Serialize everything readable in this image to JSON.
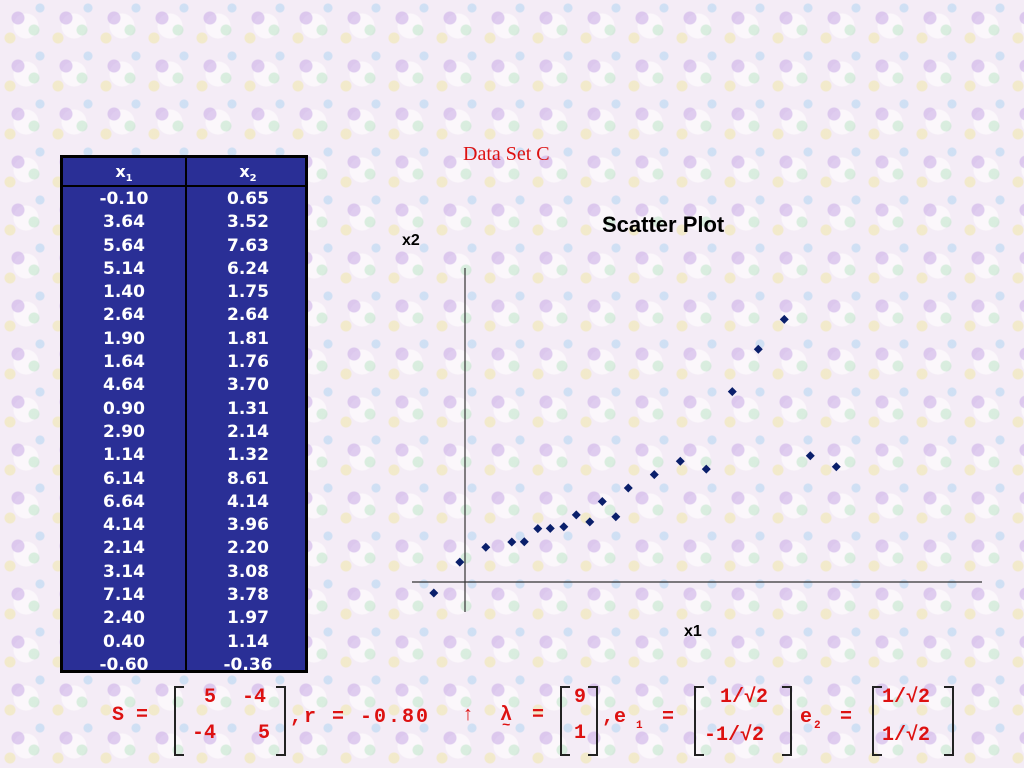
{
  "title": "Data Set C",
  "table": {
    "header_x1": "x",
    "header_x1_sub": "1",
    "header_x2": "x",
    "header_x2_sub": "2",
    "x1": [
      "-0.10",
      "3.64",
      "5.64",
      "5.14",
      "1.40",
      "2.64",
      "1.90",
      "1.64",
      "4.64",
      "0.90",
      "2.90",
      "1.14",
      "6.14",
      "6.64",
      "4.14",
      "2.14",
      "3.14",
      "7.14",
      "2.40",
      "0.40",
      "-0.60"
    ],
    "x2": [
      "0.65",
      "3.52",
      "7.63",
      "6.24",
      "1.75",
      "2.64",
      "1.81",
      "1.76",
      "3.70",
      "1.31",
      "2.14",
      "1.32",
      "8.61",
      "4.14",
      "3.96",
      "2.20",
      "3.08",
      "3.78",
      "1.97",
      "1.14",
      "-0.36"
    ]
  },
  "chart_data": {
    "type": "scatter",
    "title": "Scatter Plot",
    "xlabel": "x1",
    "ylabel": "x2",
    "grid": false,
    "x": [
      -0.1,
      3.64,
      5.64,
      5.14,
      1.4,
      2.64,
      1.9,
      1.64,
      4.64,
      0.9,
      2.9,
      1.14,
      6.14,
      6.64,
      4.14,
      2.14,
      3.14,
      7.14,
      2.4,
      0.4,
      -0.6
    ],
    "y": [
      0.65,
      3.52,
      7.63,
      6.24,
      1.75,
      2.64,
      1.81,
      1.76,
      3.7,
      1.31,
      2.14,
      1.32,
      8.61,
      4.14,
      3.96,
      2.2,
      3.08,
      3.78,
      1.97,
      1.14,
      -0.36
    ],
    "marker_color": "#0a1f6b"
  },
  "formula": {
    "S_label": "S =",
    "S_matrix": [
      "5",
      "-4",
      "-4",
      "5"
    ],
    "r_text": ",r = -0.80",
    "arrow": "↑",
    "lambda_label": "λ",
    "lambda_tilde": "~",
    "lambda_eq": "=",
    "lambda_matrix": [
      "9",
      "1"
    ],
    "e1_label": ",e",
    "e1_sub": "1",
    "e1_eq": "=",
    "e1_matrix": [
      "1/√2",
      "-1/√2"
    ],
    "e2_label": "e",
    "e2_sub": "2",
    "e2_eq": "=",
    "e2_matrix": [
      "1/√2",
      "1/√2"
    ]
  },
  "colors": {
    "accent_red": "#dd1111",
    "table_bg": "#2a2f96"
  }
}
